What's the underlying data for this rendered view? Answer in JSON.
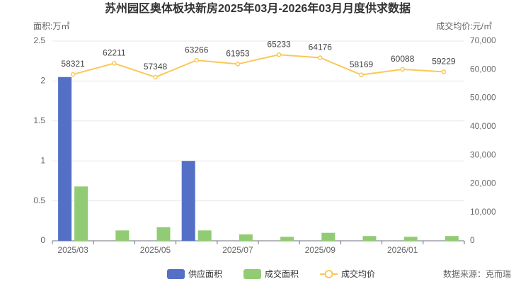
{
  "chart_data": {
    "type": "bar-line",
    "title": "苏州园区奥体板块新房2025年03月-2026年03月月度供求数据",
    "y_label": "面积:万㎡",
    "y2_label": "成交均价:元/㎡",
    "source": "数据来源：克而瑞",
    "categories": [
      "2025/03",
      null,
      "2025/05",
      null,
      "2025/07",
      null,
      "2025/09",
      null,
      "2026/01",
      null
    ],
    "series": [
      {
        "name": "供应面积",
        "type": "bar",
        "color": "#5470c6",
        "values": [
          2.05,
          0,
          0,
          1.0,
          0,
          0,
          0,
          0,
          0,
          0
        ]
      },
      {
        "name": "成交面积",
        "type": "bar",
        "color": "#91cc75",
        "values": [
          0.68,
          0.13,
          0.17,
          0.13,
          0.08,
          0.05,
          0.1,
          0.06,
          0.05,
          0.06
        ]
      },
      {
        "name": "成交均价",
        "type": "line",
        "axis": "y2",
        "color": "#fac858",
        "values": [
          58321,
          62211,
          57348,
          63266,
          61953,
          65233,
          64176,
          58169,
          60088,
          59229
        ]
      }
    ],
    "ylim": [
      0,
      2.5
    ],
    "yticks": [
      0,
      0.5,
      1,
      1.5,
      2,
      2.5
    ],
    "y2lim": [
      0,
      70000
    ],
    "y2ticks": [
      0,
      {
        "value": 10000,
        "label": "10,000"
      },
      {
        "value": 20000,
        "label": "20,000"
      },
      {
        "value": 30000,
        "label": "30,000"
      },
      {
        "value": 40000,
        "label": "40,000"
      },
      {
        "value": 50000,
        "label": "50,000"
      },
      {
        "value": 60000,
        "label": "60,000"
      },
      {
        "value": 70000,
        "label": "70,000"
      }
    ],
    "grid": true
  }
}
